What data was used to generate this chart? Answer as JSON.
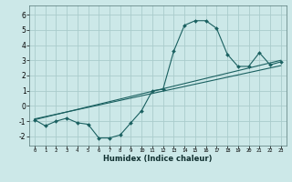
{
  "title": "",
  "xlabel": "Humidex (Indice chaleur)",
  "ylabel": "",
  "bg_color": "#cce8e8",
  "grid_color": "#aacccc",
  "line_color": "#1a6060",
  "xlim": [
    -0.5,
    23.5
  ],
  "ylim": [
    -2.6,
    6.6
  ],
  "yticks": [
    -2,
    -1,
    0,
    1,
    2,
    3,
    4,
    5,
    6
  ],
  "xticks": [
    0,
    1,
    2,
    3,
    4,
    5,
    6,
    7,
    8,
    9,
    10,
    11,
    12,
    13,
    14,
    15,
    16,
    17,
    18,
    19,
    20,
    21,
    22,
    23
  ],
  "wavy_x": [
    0,
    1,
    2,
    3,
    4,
    5,
    6,
    7,
    8,
    9,
    10,
    11,
    12,
    13,
    14,
    15,
    16,
    17,
    18,
    19,
    20,
    21,
    22,
    23
  ],
  "wavy_y": [
    -0.9,
    -1.3,
    -1.0,
    -0.8,
    -1.1,
    -1.2,
    -2.1,
    -2.1,
    -1.9,
    -1.1,
    -0.3,
    1.0,
    1.1,
    3.6,
    5.3,
    5.6,
    5.6,
    5.1,
    3.4,
    2.6,
    2.6,
    3.5,
    2.7,
    2.9
  ],
  "line1_x": [
    0,
    23
  ],
  "line1_y": [
    -0.9,
    3.0
  ],
  "line2_x": [
    0,
    23
  ],
  "line2_y": [
    -0.85,
    2.65
  ]
}
